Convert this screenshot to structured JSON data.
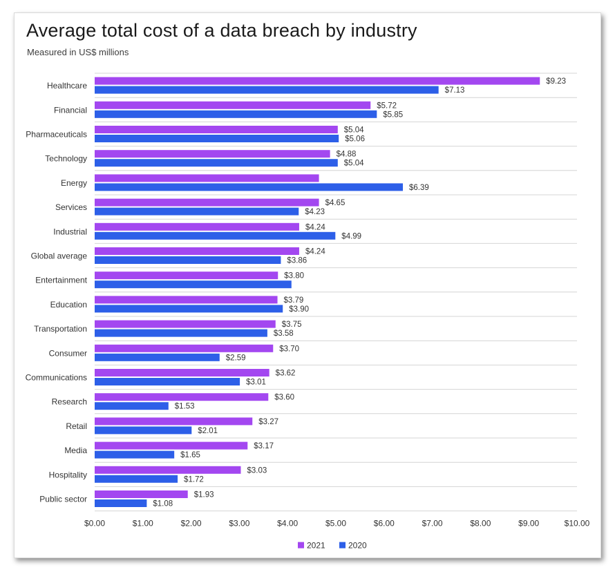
{
  "chart_data": {
    "type": "bar",
    "orientation": "horizontal",
    "title": "Average total cost of a data breach by industry",
    "subtitle": "Measured in US$ millions",
    "categories": [
      "Healthcare",
      "Financial",
      "Pharmaceuticals",
      "Technology",
      "Energy",
      "Services",
      "Industrial",
      "Global average",
      "Entertainment",
      "Education",
      "Transportation",
      "Consumer",
      "Communications",
      "Research",
      "Retail",
      "Media",
      "Hospitality",
      "Public sector"
    ],
    "series": [
      {
        "name": "2021",
        "color": "#a347f0",
        "values": [
          9.23,
          5.72,
          5.04,
          4.88,
          4.65,
          4.65,
          4.24,
          4.24,
          3.8,
          3.79,
          3.75,
          3.7,
          3.62,
          3.6,
          3.27,
          3.17,
          3.03,
          1.93
        ],
        "labels": [
          "$9.23",
          "$5.72",
          "$5.04",
          "$4.88",
          "",
          "$4.65",
          "$4.24",
          "$4.24",
          "$3.80",
          "$3.79",
          "$3.75",
          "$3.70",
          "$3.62",
          "$3.60",
          "$3.27",
          "$3.17",
          "$3.03",
          "$1.93"
        ]
      },
      {
        "name": "2020",
        "color": "#2d5fe8",
        "values": [
          7.13,
          5.85,
          5.06,
          5.04,
          6.39,
          4.23,
          4.99,
          3.86,
          4.08,
          3.9,
          3.58,
          2.59,
          3.01,
          1.53,
          2.01,
          1.65,
          1.72,
          1.08
        ],
        "labels": [
          "$7.13",
          "$5.85",
          "$5.06",
          "$5.04",
          "$6.39",
          "$4.23",
          "$4.99",
          "$3.86",
          "",
          "$3.90",
          "$3.58",
          "$2.59",
          "$3.01",
          "$1.53",
          "$2.01",
          "$1.65",
          "$1.72",
          "$1.08"
        ]
      }
    ],
    "xlim": [
      0,
      10
    ],
    "xticks": [
      0,
      1,
      2,
      3,
      4,
      5,
      6,
      7,
      8,
      9,
      10
    ],
    "xtick_labels": [
      "$0.00",
      "$1.00",
      "$2.00",
      "$3.00",
      "$4.00",
      "$5.00",
      "$6.00",
      "$7.00",
      "$8.00",
      "$9.00",
      "$10.00"
    ],
    "grid": "horizontal separators between categories",
    "legend_position": "bottom-center"
  }
}
